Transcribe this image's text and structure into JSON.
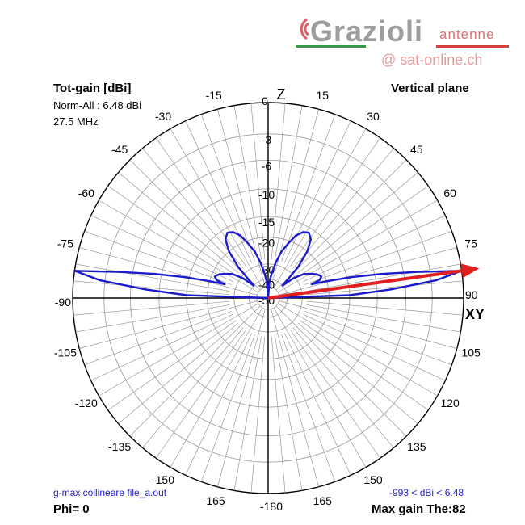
{
  "chart_data": {
    "type": "polar",
    "title": "Tot-gain [dBi]",
    "norm_label": "Norm-All : 6.48 dBi",
    "frequency": "27.5 MHz",
    "plane": "Vertical plane",
    "axis_labels": {
      "top": "Z",
      "right": "XY"
    },
    "angle_ticks": [
      {
        "angle": 0,
        "label": "0"
      },
      {
        "angle": 15,
        "label": "15"
      },
      {
        "angle": 30,
        "label": "30"
      },
      {
        "angle": 45,
        "label": "45"
      },
      {
        "angle": 60,
        "label": "60"
      },
      {
        "angle": 75,
        "label": "75"
      },
      {
        "angle": 90,
        "label": "90"
      },
      {
        "angle": 105,
        "label": "105"
      },
      {
        "angle": 120,
        "label": "120"
      },
      {
        "angle": 135,
        "label": "135"
      },
      {
        "angle": 150,
        "label": "150"
      },
      {
        "angle": 165,
        "label": "165"
      },
      {
        "angle": 180,
        "label": "-180"
      },
      {
        "angle": -15,
        "label": "-15"
      },
      {
        "angle": -30,
        "label": "-30"
      },
      {
        "angle": -45,
        "label": "-45"
      },
      {
        "angle": -60,
        "label": "-60"
      },
      {
        "angle": -75,
        "label": "-75"
      },
      {
        "angle": -90,
        "label": "-90"
      },
      {
        "angle": -105,
        "label": "-105"
      },
      {
        "angle": -120,
        "label": "-120"
      },
      {
        "angle": -135,
        "label": "-135"
      },
      {
        "angle": -150,
        "label": "-150"
      },
      {
        "angle": -165,
        "label": "-165"
      }
    ],
    "radial_ticks": [
      {
        "db": 0,
        "label": "0"
      },
      {
        "db": -3,
        "label": "-3"
      },
      {
        "db": -6,
        "label": "-6"
      },
      {
        "db": -10,
        "label": "-10"
      },
      {
        "db": -15,
        "label": "-15"
      },
      {
        "db": -20,
        "label": "-20"
      },
      {
        "db": -30,
        "label": "-30"
      },
      {
        "db": -40,
        "label": "-40"
      },
      {
        "db": -50,
        "label": "-50"
      }
    ],
    "series": [
      {
        "color": "#1a1acc",
        "points": [
          [
            0,
            -50
          ],
          [
            4,
            -44
          ],
          [
            8,
            -36
          ],
          [
            12,
            -29
          ],
          [
            16,
            -24
          ],
          [
            20,
            -21
          ],
          [
            24,
            -18
          ],
          [
            28,
            -16.5
          ],
          [
            32,
            -16
          ],
          [
            36,
            -17
          ],
          [
            40,
            -20
          ],
          [
            44,
            -26
          ],
          [
            47,
            -35
          ],
          [
            49,
            -40
          ],
          [
            52,
            -31
          ],
          [
            56,
            -26
          ],
          [
            60,
            -24
          ],
          [
            64,
            -22
          ],
          [
            68,
            -21
          ],
          [
            71,
            -22
          ],
          [
            72.5,
            -25
          ],
          [
            74,
            -20
          ],
          [
            76,
            -14
          ],
          [
            78,
            -9
          ],
          [
            80,
            -4.5
          ],
          [
            82,
            0
          ],
          [
            84,
            -2.5
          ],
          [
            86,
            -8
          ],
          [
            88,
            -15
          ],
          [
            90,
            -50
          ]
        ],
        "mirror": true
      }
    ],
    "max_gain_direction": {
      "angle": 82,
      "color": "#e02020"
    }
  },
  "footer": {
    "left": "g-max collineare file_a.out",
    "right": "-993 < dBi < 6.48",
    "phi": "Phi= 0",
    "max_gain": "Max gain The:82"
  },
  "logo": {
    "name": "Grazioli",
    "sub": "antenne",
    "web": "@ sat-online.ch"
  }
}
